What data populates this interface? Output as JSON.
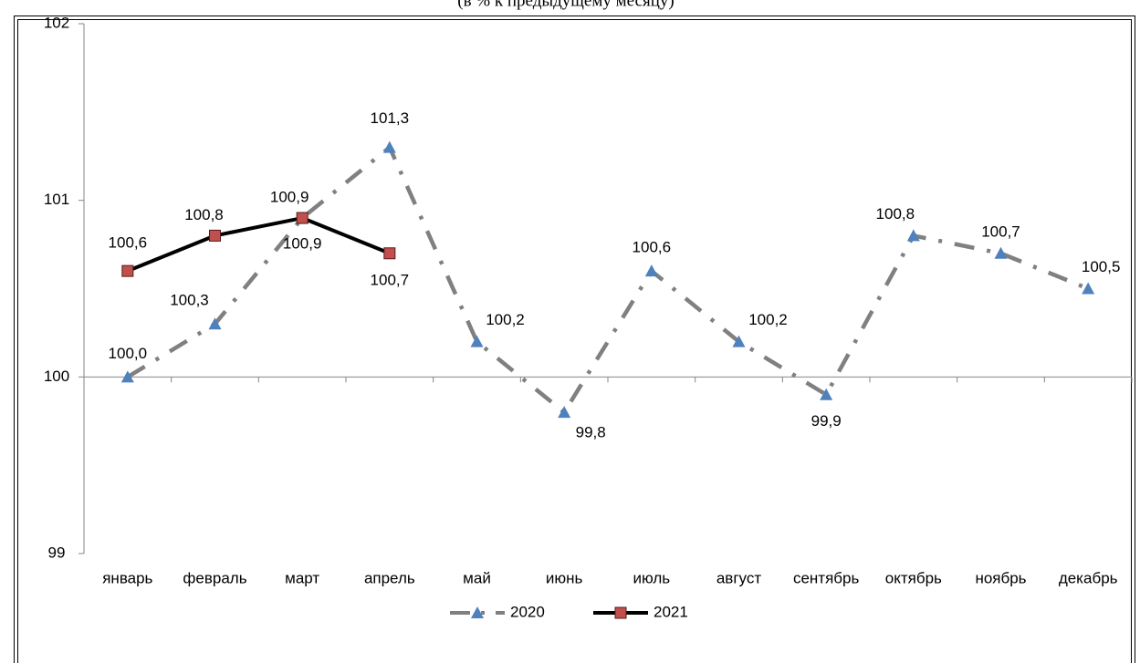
{
  "chart_data": {
    "type": "line",
    "subtitle": "(в % к предыдущему месяцу)",
    "categories": [
      "январь",
      "февраль",
      "март",
      "апрель",
      "май",
      "июнь",
      "июль",
      "август",
      "сентябрь",
      "октябрь",
      "ноябрь",
      "декабрь"
    ],
    "series": [
      {
        "name": "2020",
        "color": "#808080",
        "marker_color": "#4f81bd",
        "marker": "triangle",
        "dash": "dash-dot",
        "values": [
          100.0,
          100.3,
          100.9,
          101.3,
          100.2,
          99.8,
          100.6,
          100.2,
          99.9,
          100.8,
          100.7,
          100.5
        ],
        "value_labels": [
          "100,0",
          "100,3",
          "100,9",
          "101,3",
          "100,2",
          "99,8",
          "100,6",
          "100,2",
          "99,9",
          "100,8",
          "100,7",
          "100,5"
        ]
      },
      {
        "name": "2021",
        "color": "#000000",
        "marker_color": "#c0504d",
        "marker": "square",
        "dash": "solid",
        "values": [
          100.6,
          100.8,
          100.9,
          100.7,
          null,
          null,
          null,
          null,
          null,
          null,
          null,
          null
        ],
        "value_labels": [
          "100,6",
          "100,8",
          "100,9",
          "100,7",
          null,
          null,
          null,
          null,
          null,
          null,
          null,
          null
        ]
      }
    ],
    "ylim": [
      99,
      102
    ],
    "yticks": [
      99,
      100,
      101,
      102
    ],
    "x_axis_crosses": 100,
    "grid": false,
    "legend": "bottom"
  }
}
